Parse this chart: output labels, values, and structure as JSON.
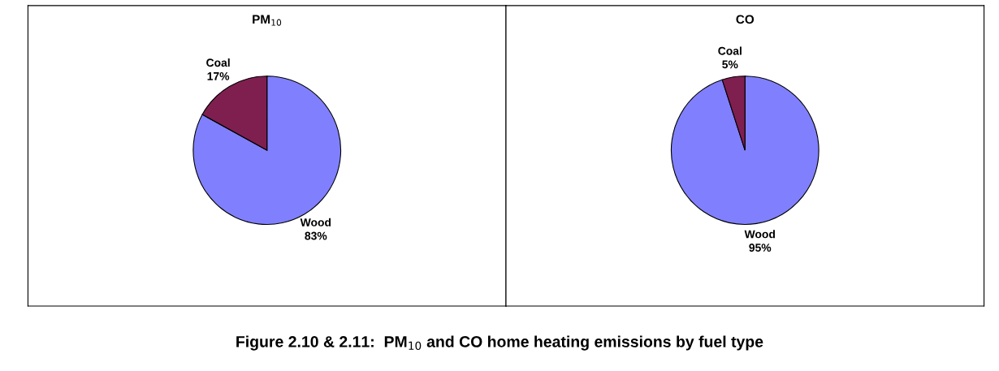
{
  "chart_data": [
    {
      "type": "pie",
      "title": "PM$_{10}$",
      "categories": [
        "Wood",
        "Coal"
      ],
      "values": [
        83,
        17
      ],
      "value_labels": [
        "83%",
        "17%"
      ],
      "colors": [
        "#8080ff",
        "#7f1f4f"
      ],
      "annotations": [
        "Figure 2.10 & 2.11:  PM$_{10}$ and CO home heating emissions by fuel type"
      ]
    },
    {
      "type": "pie",
      "title": "CO",
      "categories": [
        "Wood",
        "Coal"
      ],
      "values": [
        95,
        5
      ],
      "value_labels": [
        "95%",
        "5%"
      ],
      "colors": [
        "#8080ff",
        "#7f1f4f"
      ]
    }
  ]
}
